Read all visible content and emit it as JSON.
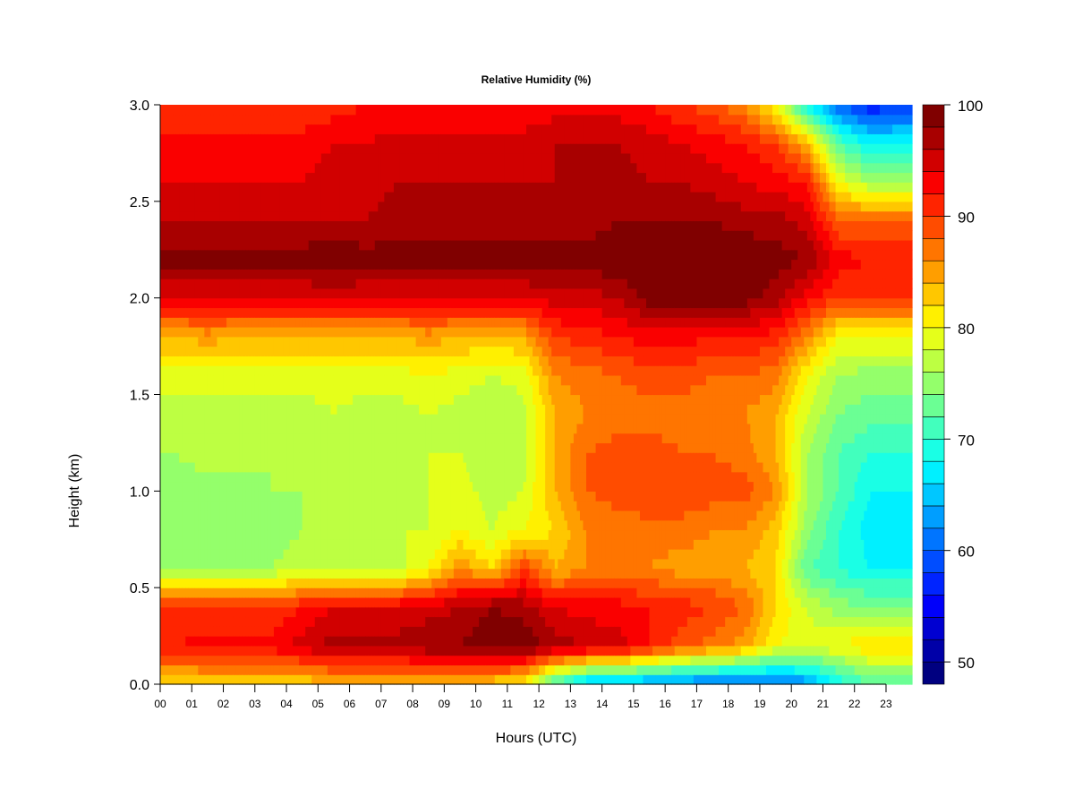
{
  "chart_data": {
    "type": "heatmap",
    "title": "Relative Humidity (%)",
    "xlabel": "Hours (UTC)",
    "ylabel": "Height (km)",
    "xlim": [
      0,
      23.85
    ],
    "ylim": [
      0,
      3.0
    ],
    "x_tick_labels": [
      "00",
      "01",
      "02",
      "03",
      "04",
      "05",
      "06",
      "07",
      "08",
      "09",
      "10",
      "11",
      "12",
      "13",
      "14",
      "15",
      "16",
      "17",
      "18",
      "19",
      "20",
      "21",
      "22",
      "23"
    ],
    "y_tick_values": [
      0.0,
      0.5,
      1.0,
      1.5,
      2.0,
      2.5,
      3.0
    ],
    "y_tick_labels": [
      "0.0",
      "0.5",
      "1.0",
      "1.5",
      "2.0",
      "2.5",
      "3.0"
    ],
    "colorscale": "jet",
    "color_levels": {
      "min": 48,
      "max": 100,
      "step": 2
    },
    "colorbar_tick_values": [
      50,
      60,
      70,
      80,
      90,
      100
    ],
    "colorbar_tick_labels": [
      "50",
      "60",
      "70",
      "80",
      "90",
      "100"
    ],
    "x_hours": [
      0.5,
      1.5,
      2.5,
      3.5,
      4.5,
      5.5,
      6.5,
      7.5,
      8.5,
      9.5,
      10.5,
      11.5,
      12.5,
      13.5,
      14.5,
      15.5,
      16.5,
      17.5,
      18.5,
      19.5,
      20.5,
      21.5,
      22.5,
      23.5
    ],
    "y_heights_km": [
      0.0,
      0.2,
      0.4,
      0.6,
      0.8,
      1.0,
      1.2,
      1.4,
      1.6,
      1.8,
      2.0,
      2.2,
      2.4,
      2.6,
      2.8,
      3.0
    ],
    "values": [
      [
        82,
        82,
        82,
        82,
        82,
        83,
        83,
        83,
        83,
        83,
        82,
        80,
        70,
        64,
        63,
        62,
        61,
        60,
        60,
        60,
        62,
        68,
        72,
        72
      ],
      [
        92,
        93,
        93,
        93,
        95,
        97,
        97,
        97,
        98,
        98,
        100,
        100,
        97,
        96,
        95,
        92,
        89,
        87,
        85,
        80,
        79,
        80,
        82,
        82
      ],
      [
        90,
        90,
        90,
        90,
        92,
        94,
        94,
        94,
        95,
        96,
        98,
        97,
        94,
        93,
        93,
        92,
        91,
        90,
        88,
        82,
        78,
        75,
        74,
        74
      ],
      [
        76,
        76,
        76,
        76,
        77,
        77,
        77,
        77,
        80,
        86,
        82,
        90,
        84,
        86,
        86,
        86,
        85,
        85,
        84,
        82,
        72,
        70,
        68,
        68
      ],
      [
        74,
        74,
        75,
        75,
        76,
        77,
        78,
        78,
        78,
        80,
        78,
        80,
        82,
        86,
        87,
        87,
        87,
        86,
        86,
        83,
        75,
        70,
        67,
        67
      ],
      [
        75,
        75,
        75,
        76,
        76,
        77,
        76,
        76,
        78,
        79,
        77,
        78,
        84,
        88,
        89,
        90,
        90,
        89,
        89,
        86,
        76,
        72,
        68,
        68
      ],
      [
        76,
        77,
        77,
        76,
        76,
        77,
        76,
        77,
        78,
        78,
        76,
        77,
        84,
        88,
        89,
        89,
        88,
        88,
        87,
        84,
        76,
        72,
        70,
        70
      ],
      [
        77,
        77,
        77,
        77,
        77,
        78,
        77,
        77,
        78,
        77,
        76,
        77,
        84,
        86,
        87,
        87,
        87,
        86,
        86,
        84,
        78,
        74,
        73,
        73
      ],
      [
        79,
        79,
        79,
        79,
        79,
        79,
        79,
        79,
        80,
        79,
        78,
        79,
        86,
        87,
        88,
        89,
        89,
        88,
        88,
        87,
        80,
        76,
        75,
        75
      ],
      [
        84,
        85,
        84,
        84,
        84,
        84,
        84,
        84,
        85,
        84,
        84,
        84,
        90,
        91,
        92,
        93,
        93,
        92,
        92,
        91,
        86,
        80,
        80,
        80
      ],
      [
        94,
        94,
        94,
        94,
        94,
        94,
        94,
        94,
        94,
        94,
        94,
        94,
        95,
        95,
        96,
        99,
        99,
        99,
        99,
        97,
        93,
        90,
        90,
        90
      ],
      [
        99,
        99,
        99,
        99,
        99,
        100,
        99,
        99,
        99,
        99,
        99,
        99,
        99,
        99,
        100,
        100,
        100,
        100,
        100,
        99,
        98,
        93,
        92,
        92
      ],
      [
        96,
        96,
        96,
        96,
        96,
        96,
        96,
        97,
        97,
        97,
        97,
        97,
        97,
        97,
        98,
        98,
        98,
        98,
        97,
        97,
        95,
        88,
        88,
        88
      ],
      [
        94,
        94,
        94,
        94,
        94,
        95,
        95,
        96,
        96,
        96,
        96,
        96,
        96,
        97,
        97,
        96,
        96,
        95,
        94,
        93,
        92,
        80,
        76,
        76
      ],
      [
        93,
        93,
        93,
        93,
        93,
        94,
        94,
        95,
        95,
        95,
        95,
        95,
        96,
        96,
        96,
        95,
        94,
        93,
        92,
        90,
        84,
        72,
        68,
        68
      ],
      [
        90,
        90,
        90,
        90,
        90,
        91,
        92,
        92,
        92,
        92,
        92,
        92,
        93,
        93,
        93,
        92,
        90,
        89,
        86,
        80,
        68,
        60,
        56,
        58
      ]
    ]
  }
}
